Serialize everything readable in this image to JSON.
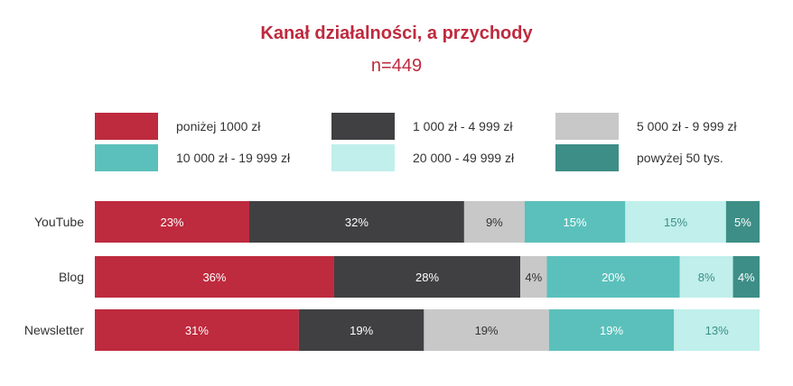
{
  "title": "Kanał działalności, a przychody",
  "subtitle": "n=449",
  "colors": [
    "#be2a3e",
    "#404042",
    "#c8c8c8",
    "#5bc0bb",
    "#c0efec",
    "#3d8e86"
  ],
  "label_colors": [
    "#ffffff",
    "#ffffff",
    "#333333",
    "#ffffff",
    "#3d8e86",
    "#ffffff"
  ],
  "legend": [
    "poniżej 1000 zł",
    "1 000 zł - 4 999 zł",
    "5 000 zł - 9 999 zł",
    "10 000 zł - 19 999 zł",
    "20 000 - 49 999 zł",
    "powyżej 50 tys."
  ],
  "chart_data": {
    "type": "bar",
    "orientation": "horizontal",
    "stacked": true,
    "title": "Kanał działalności, a przychody",
    "subtitle": "n=449",
    "categories": [
      "YouTube",
      "Blog",
      "Newsletter"
    ],
    "series": [
      {
        "name": "poniżej 1000 zł",
        "values": [
          23,
          36,
          31
        ],
        "labels": [
          "23%",
          "36%",
          "31%"
        ]
      },
      {
        "name": "1 000 zł - 4 999 zł",
        "values": [
          32,
          28,
          19
        ],
        "labels": [
          "32%",
          "28%",
          "19%"
        ]
      },
      {
        "name": "5 000 zł - 9 999 zł",
        "values": [
          9,
          4,
          19
        ],
        "labels": [
          "9%",
          "4%",
          "19%"
        ]
      },
      {
        "name": "10 000 zł - 19 999 zł",
        "values": [
          15,
          20,
          19
        ],
        "labels": [
          "15%",
          "20%",
          "19%"
        ]
      },
      {
        "name": "20 000 - 49 999 zł",
        "values": [
          15,
          8,
          13
        ],
        "labels": [
          "15%",
          "8%",
          "13%"
        ]
      },
      {
        "name": "powyżej 50 tys.",
        "values": [
          5,
          4,
          0
        ],
        "labels": [
          "5%",
          "4%",
          ""
        ]
      }
    ],
    "xlim": [
      0,
      100
    ],
    "legend_position": "top",
    "grid": false
  }
}
